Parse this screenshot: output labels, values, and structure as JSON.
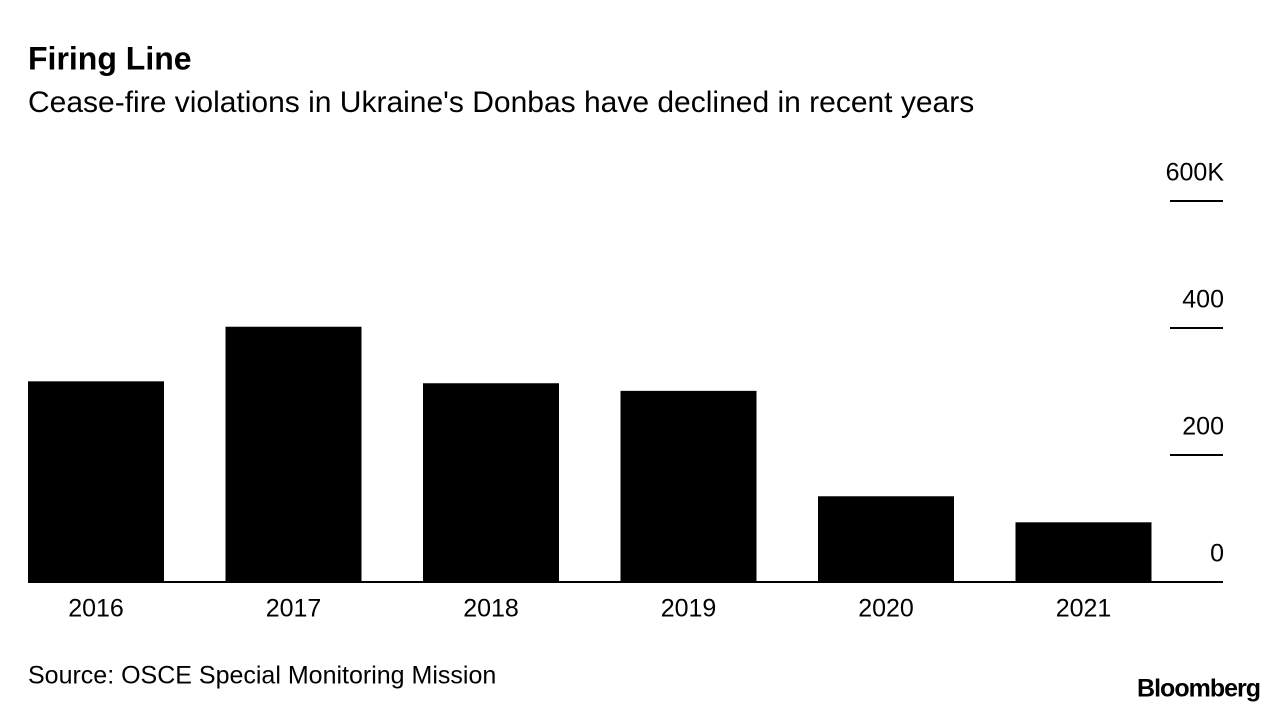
{
  "chart_data": {
    "type": "bar",
    "title": "Firing Line",
    "subtitle": "Cease-fire violations in Ukraine's Donbas have declined in recent years",
    "categories": [
      "2016",
      "2017",
      "2018",
      "2019",
      "2020",
      "2021"
    ],
    "values": [
      316000,
      402000,
      313000,
      301000,
      135000,
      94000
    ],
    "color": "#000000",
    "ylim": [
      0,
      600000
    ],
    "yticks": [
      0,
      {
        "value": 200000,
        "label": "200"
      },
      {
        "value": 400000,
        "label": "400"
      },
      {
        "value": 600000,
        "label": "600K"
      }
    ],
    "source": "Source: OSCE Special Monitoring Mission",
    "logo": "Bloomberg"
  }
}
